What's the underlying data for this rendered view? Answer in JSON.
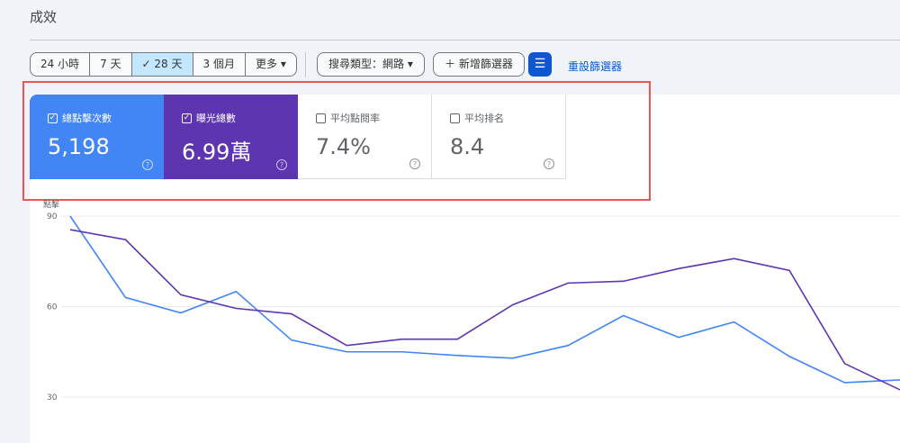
{
  "page": {
    "title": "成效"
  },
  "toolbar": {
    "ranges": [
      "24 小時",
      "7 天",
      "28 天",
      "3 個月",
      "更多"
    ],
    "selected_range": "28 天",
    "search_type": "搜尋類型：網路",
    "add_filter": "新增篩選器",
    "reset_filters": "重設篩選器"
  },
  "metrics": [
    {
      "label": "總點擊次數",
      "value": "5,198",
      "checked": true,
      "color": "#4285f4"
    },
    {
      "label": "曝光總數",
      "value": "6.99萬",
      "checked": true,
      "color": "#5e35b1"
    },
    {
      "label": "平均點閱率",
      "value": "7.4%",
      "checked": false
    },
    {
      "label": "平均排名",
      "value": "8.4",
      "checked": false
    }
  ],
  "chart_data": {
    "type": "line",
    "ylabel": "點擊",
    "yticks": [
      "90",
      "60",
      "30"
    ],
    "ylim": [
      30,
      90
    ],
    "grid": true,
    "series": [
      {
        "key": "clicks",
        "color": "#4285f4",
        "values": [
          90,
          63,
          57.9,
          65,
          48.9,
          45,
          45,
          43.8,
          42.9,
          47.1,
          57,
          49.8,
          54.9,
          43.5,
          34.8,
          35.7
        ]
      },
      {
        "key": "impressions",
        "color": "#5e35b1",
        "values": [
          85.5,
          82.2,
          63.9,
          59.4,
          57.6,
          47.1,
          49.2,
          49.2,
          60.6,
          67.8,
          68.4,
          72.6,
          75.9,
          72,
          41.1,
          32.4
        ]
      }
    ]
  }
}
